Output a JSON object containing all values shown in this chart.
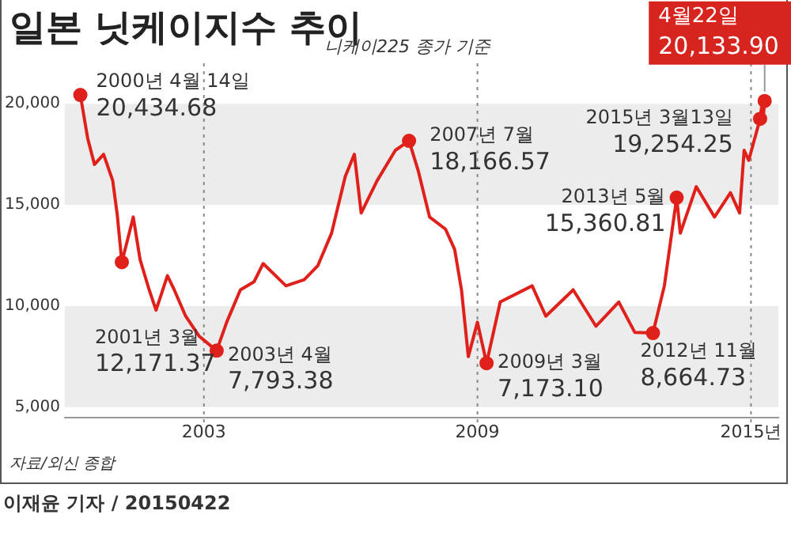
{
  "chart_data": {
    "type": "line",
    "title": "일본 닛케이지수 추이",
    "subtitle": "니케이225 종가 기준",
    "series": [
      {
        "color": "#e0201b",
        "x": [
          2000.29,
          2000.45,
          2000.6,
          2000.8,
          2001.0,
          2001.1,
          2001.2,
          2001.35,
          2001.45,
          2001.6,
          2001.8,
          2001.95,
          2002.2,
          2002.35,
          2002.6,
          2002.9,
          2003.28,
          2003.5,
          2003.8,
          2004.1,
          2004.3,
          2004.8,
          2005.2,
          2005.5,
          2005.8,
          2006.1,
          2006.3,
          2006.45,
          2006.8,
          2007.2,
          2007.5,
          2007.7,
          2007.95,
          2008.3,
          2008.5,
          2008.65,
          2008.8,
          2009.0,
          2009.2,
          2009.5,
          2010.2,
          2010.5,
          2011.1,
          2011.6,
          2012.1,
          2012.45,
          2012.85,
          2013.1,
          2013.37,
          2013.45,
          2013.8,
          2014.2,
          2014.55,
          2014.75,
          2014.85,
          2014.95,
          2015.2,
          2015.23,
          2015.26,
          2015.3
        ],
        "values": [
          20434.68,
          18300,
          17000,
          17500,
          16200,
          14500,
          12171.37,
          13500,
          14400,
          12300,
          10800,
          9800,
          11500,
          10800,
          9500,
          8500,
          7793.38,
          9200,
          10800,
          11200,
          12100,
          11000,
          11300,
          12000,
          13600,
          16400,
          17500,
          14600,
          16200,
          17700,
          18166.57,
          16700,
          14400,
          13800,
          12800,
          10800,
          7500,
          9200,
          7173.1,
          10200,
          11000,
          9500,
          10800,
          9000,
          10200,
          8700,
          8664.73,
          11000,
          15360.81,
          13600,
          15900,
          14400,
          15600,
          14600,
          17700,
          17200,
          19254.25,
          19800,
          19100,
          20133.9
        ]
      },
      {
        "type": "scatter",
        "color": "#e0201b",
        "marker": "circle",
        "x": [
          2000.29,
          2001.2,
          2003.28,
          2007.5,
          2009.2,
          2012.85,
          2013.37,
          2015.2,
          2015.3
        ],
        "values": [
          20434.68,
          12171.37,
          7793.38,
          18166.57,
          7173.1,
          8664.73,
          15360.81,
          19254.25,
          20133.9
        ]
      }
    ],
    "xlim": [
      1999.95,
      2015.6
    ],
    "xticks": [
      2003,
      2009,
      {
        "value": 2015,
        "label": "2015년"
      }
    ],
    "ylim": [
      4500,
      22000
    ],
    "yticks": [
      {
        "value": 5000,
        "label": "5,000"
      },
      {
        "value": 10000,
        "label": "10,000"
      },
      {
        "value": 15000,
        "label": "15,000"
      },
      {
        "value": 20000,
        "label": "20,000"
      }
    ],
    "grid": false,
    "legend": false,
    "bands": [
      {
        "axis": "y",
        "from": 15000,
        "to": 20000,
        "color": "#ececec"
      },
      {
        "axis": "y",
        "from": 5000,
        "to": 10000,
        "color": "#ececec"
      }
    ],
    "ref_lines": [
      {
        "axis": "x",
        "value": 2003,
        "color": "#888888",
        "line_style": "dotted"
      },
      {
        "axis": "x",
        "value": 2009,
        "color": "#888888",
        "line_style": "dotted"
      },
      {
        "axis": "x",
        "value": 2015,
        "color": "#888888",
        "line_style": "dotted"
      }
    ],
    "annotations": [
      {
        "text": "2000년 4월 14일\n20,434.68",
        "x": 2000.29,
        "y": 20434.68
      },
      {
        "text": "2001년 3월\n12,171.37",
        "x": 2001.2,
        "y": 12171.37
      },
      {
        "text": "2003년 4월\n7,793.38",
        "x": 2003.28,
        "y": 7793.38
      },
      {
        "text": "2007년 7월\n18,166.57",
        "x": 2007.5,
        "y": 18166.57
      },
      {
        "text": "2009년 3월\n7,173.10",
        "x": 2009.2,
        "y": 7173.1
      },
      {
        "text": "2012년 11월\n8,664.73",
        "x": 2012.85,
        "y": 8664.73
      },
      {
        "text": "2013년 5월\n15,360.81",
        "x": 2013.37,
        "y": 15360.81
      },
      {
        "text": "2015년 3월13일\n19,254.25",
        "x": 2015.2,
        "y": 19254.25
      },
      {
        "text": "4월22일\n20,133.90",
        "x": 2015.3,
        "y": 20133.9
      },
      "자료/외신 종합",
      "이재윤 기자 / 20150422"
    ]
  }
}
